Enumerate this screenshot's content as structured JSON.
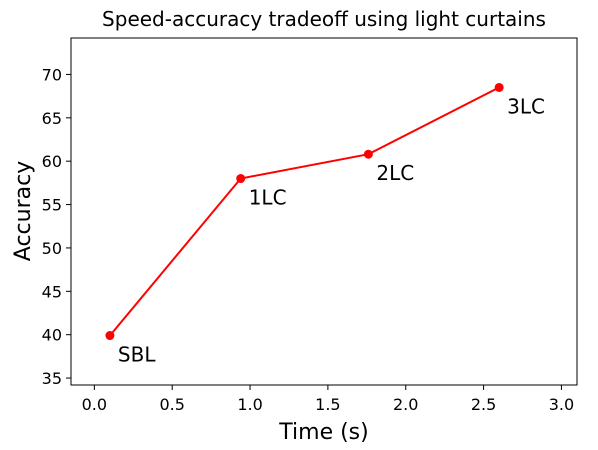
{
  "chart_data": {
    "type": "line",
    "title": "Speed-accuracy tradeoff using light curtains",
    "xlabel": "Time (s)",
    "ylabel": "Accuracy",
    "xlim": [
      -0.15,
      3.1
    ],
    "ylim": [
      34.2,
      74.2
    ],
    "xticks": [
      0.0,
      0.5,
      1.0,
      1.5,
      2.0,
      2.5,
      3.0
    ],
    "xtick_labels": [
      "0.0",
      "0.5",
      "1.0",
      "1.5",
      "2.0",
      "2.5",
      "3.0"
    ],
    "yticks": [
      35,
      40,
      45,
      50,
      55,
      60,
      65,
      70
    ],
    "ytick_labels": [
      "35",
      "40",
      "45",
      "50",
      "55",
      "60",
      "65",
      "70"
    ],
    "grid": false,
    "series": [
      {
        "color": "#ff0000",
        "points": [
          {
            "x": 0.1,
            "y": 39.9,
            "label": "SBL"
          },
          {
            "x": 0.94,
            "y": 58.0,
            "label": "1LC"
          },
          {
            "x": 1.76,
            "y": 60.8,
            "label": "2LC"
          },
          {
            "x": 2.6,
            "y": 68.5,
            "label": "3LC"
          }
        ]
      }
    ]
  }
}
